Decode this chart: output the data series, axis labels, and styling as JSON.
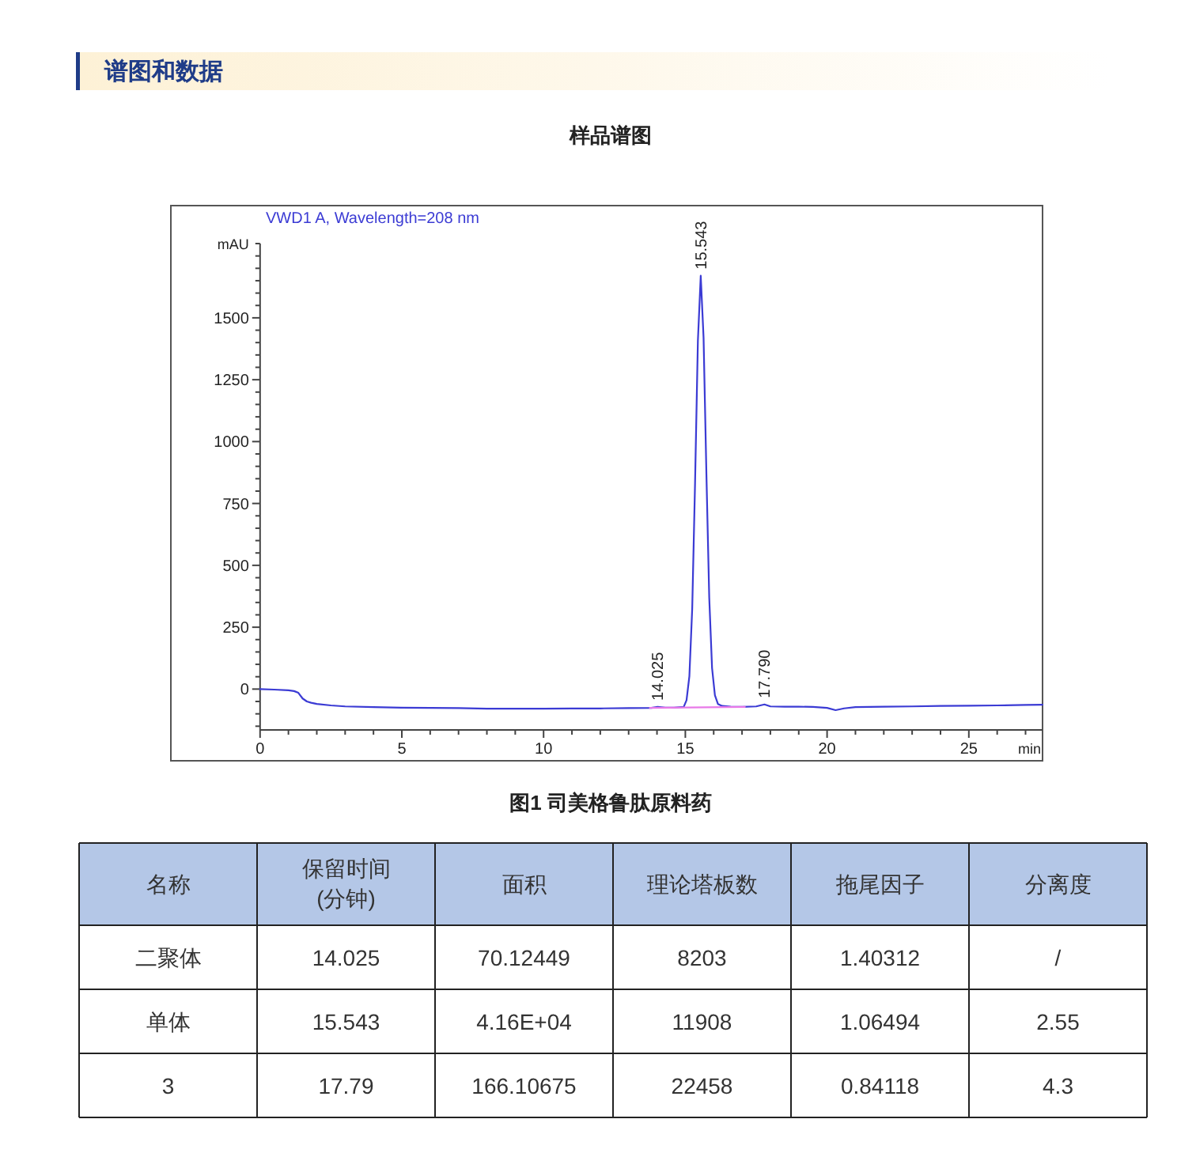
{
  "chart_data": [
    {
      "type": "line",
      "title": "样品谱图",
      "xlabel": "min",
      "ylabel": "mAU",
      "xlim": [
        0,
        27.6
      ],
      "ylim": [
        -165,
        1800
      ],
      "xticks": [
        0,
        {
          "value": 1,
          "label": null
        },
        {
          "value": 2,
          "label": null
        },
        {
          "value": 3,
          "label": null
        },
        {
          "value": 4,
          "label": null
        },
        5,
        {
          "value": 6,
          "label": null
        },
        {
          "value": 7,
          "label": null
        },
        {
          "value": 8,
          "label": null
        },
        {
          "value": 9,
          "label": null
        },
        10,
        {
          "value": 11,
          "label": null
        },
        {
          "value": 12,
          "label": null
        },
        {
          "value": 13,
          "label": null
        },
        {
          "value": 14,
          "label": null
        },
        15,
        {
          "value": 16,
          "label": null
        },
        {
          "value": 17,
          "label": null
        },
        {
          "value": 18,
          "label": null
        },
        {
          "value": 19,
          "label": null
        },
        20,
        {
          "value": 21,
          "label": null
        },
        {
          "value": 22,
          "label": null
        },
        {
          "value": 23,
          "label": null
        },
        {
          "value": 24,
          "label": null
        },
        25,
        {
          "value": 26,
          "label": null
        },
        {
          "value": 27,
          "label": null
        }
      ],
      "yticks": [
        {
          "value": -150,
          "label": null
        },
        {
          "value": -100,
          "label": null
        },
        {
          "value": -50,
          "label": null
        },
        0,
        {
          "value": 50,
          "label": null
        },
        {
          "value": 100,
          "label": null
        },
        {
          "value": 150,
          "label": null
        },
        {
          "value": 200,
          "label": null
        },
        250,
        {
          "value": 300,
          "label": null
        },
        {
          "value": 350,
          "label": null
        },
        {
          "value": 400,
          "label": null
        },
        {
          "value": 450,
          "label": null
        },
        500,
        {
          "value": 550,
          "label": null
        },
        {
          "value": 600,
          "label": null
        },
        {
          "value": 650,
          "label": null
        },
        {
          "value": 700,
          "label": null
        },
        750,
        {
          "value": 800,
          "label": null
        },
        {
          "value": 850,
          "label": null
        },
        {
          "value": 900,
          "label": null
        },
        {
          "value": 950,
          "label": null
        },
        1000,
        {
          "value": 1050,
          "label": null
        },
        {
          "value": 1100,
          "label": null
        },
        {
          "value": 1150,
          "label": null
        },
        {
          "value": 1200,
          "label": null
        },
        1250,
        {
          "value": 1300,
          "label": null
        },
        {
          "value": 1350,
          "label": null
        },
        {
          "value": 1400,
          "label": null
        },
        {
          "value": 1450,
          "label": null
        },
        1500,
        {
          "value": 1550,
          "label": null
        },
        {
          "value": 1600,
          "label": null
        },
        {
          "value": 1650,
          "label": null
        },
        {
          "value": 1700,
          "label": null
        },
        {
          "value": 1750,
          "label": null
        },
        {
          "value": 1800,
          "label": null
        }
      ],
      "series": [
        {
          "name": "VWD1 A, Wavelength=208 nm",
          "color": "#3b3bd4",
          "x": [
            0,
            0.5,
            1.0,
            1.2,
            1.35,
            1.5,
            1.65,
            1.8,
            2.0,
            2.5,
            3.0,
            4.0,
            5.0,
            6.0,
            7.0,
            8.0,
            9.0,
            10.0,
            11.0,
            12.0,
            13.0,
            13.8,
            14.025,
            14.3,
            14.6,
            14.943,
            15.043,
            15.143,
            15.243,
            15.343,
            15.443,
            15.543,
            15.643,
            15.743,
            15.843,
            15.943,
            16.043,
            16.15,
            16.3,
            16.6,
            17.0,
            17.5,
            17.79,
            18.0,
            18.5,
            19.0,
            19.5,
            20.0,
            20.3,
            20.6,
            21.0,
            22.0,
            23.0,
            24.0,
            25.0,
            26.0,
            27.0,
            27.6
          ],
          "values": [
            0,
            -2,
            -5,
            -8,
            -15,
            -38,
            -50,
            -55,
            -60,
            -66,
            -70,
            -73,
            -75,
            -76,
            -77,
            -79,
            -79,
            -79,
            -78,
            -78,
            -77,
            -76,
            -72,
            -75,
            -75,
            -72,
            -45,
            53,
            326,
            833,
            1406,
            1670,
            1420,
            870,
            370,
            85,
            -25,
            -60,
            -68,
            -71,
            -72,
            -70,
            -62,
            -70,
            -71,
            -71,
            -72,
            -76,
            -85,
            -78,
            -73,
            -71,
            -70,
            -68,
            -67,
            -66,
            -64,
            -63
          ]
        },
        {
          "color": "#e879e8",
          "x": [
            13.75,
            17.1
          ],
          "values": [
            -76,
            -72
          ]
        }
      ],
      "annotations": [
        "谱图和数据",
        "图1 司美格鲁肽原料药",
        {
          "text": "14.025",
          "x": 14.025,
          "y": -72
        },
        {
          "text": "15.543",
          "x": 15.543,
          "y": 1670
        },
        {
          "text": "17.790",
          "x": 17.79,
          "y": -62
        }
      ]
    },
    {
      "type": "other",
      "ylabel": "名称",
      "categories": [
        "保留时间 (分钟)",
        "面积",
        "理论塔板数",
        "拖尾因子",
        "分离度"
      ],
      "y_categories": [
        "二聚体",
        "单体",
        "3"
      ],
      "cell_labels": [
        [
          "14.025",
          "70.12449",
          "8203",
          "1.40312",
          "/"
        ],
        [
          "15.543",
          "4.16E+04",
          "11908",
          "1.06494",
          "2.55"
        ],
        [
          "17.79",
          "166.10675",
          "22458",
          "0.84118",
          "4.3"
        ]
      ]
    }
  ]
}
